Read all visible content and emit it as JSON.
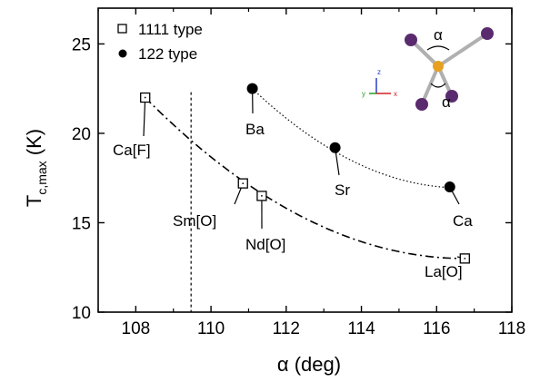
{
  "chart_data": {
    "type": "scatter",
    "xlabel": "α (deg)",
    "ylabel_main": "T",
    "ylabel_sub": "c,max",
    "ylabel_unit": " (K)",
    "xlim": [
      107,
      118
    ],
    "ylim": [
      10,
      27
    ],
    "x_ticks": [
      108,
      110,
      112,
      114,
      116,
      118
    ],
    "y_ticks": [
      10,
      15,
      20,
      25
    ],
    "vertical_reference_line": 109.47,
    "series": [
      {
        "name": "1111 type",
        "marker": "open-square",
        "line_style": "dash-dot",
        "points": [
          {
            "x": 108.25,
            "y": 22.0,
            "label": "Ca[F]"
          },
          {
            "x": 110.85,
            "y": 17.2,
            "label": "Sm[O]"
          },
          {
            "x": 111.35,
            "y": 16.5,
            "label": "Nd[O]"
          },
          {
            "x": 116.75,
            "y": 13.0,
            "label": "La[O]"
          }
        ]
      },
      {
        "name": "122 type",
        "marker": "filled-circle",
        "line_style": "dotted",
        "points": [
          {
            "x": 111.1,
            "y": 22.5,
            "label": "Ba"
          },
          {
            "x": 113.3,
            "y": 19.2,
            "label": "Sr"
          },
          {
            "x": 116.35,
            "y": 17.0,
            "label": "Ca"
          }
        ]
      }
    ],
    "inset": {
      "angle_label_top": "α",
      "angle_label_bottom": "α",
      "axis_labels": [
        "z",
        "y",
        "x"
      ],
      "colors": {
        "central_atom": "#e8a020",
        "outer_atom": "#5a2a6e",
        "bond": "#b0b0b0"
      }
    }
  }
}
